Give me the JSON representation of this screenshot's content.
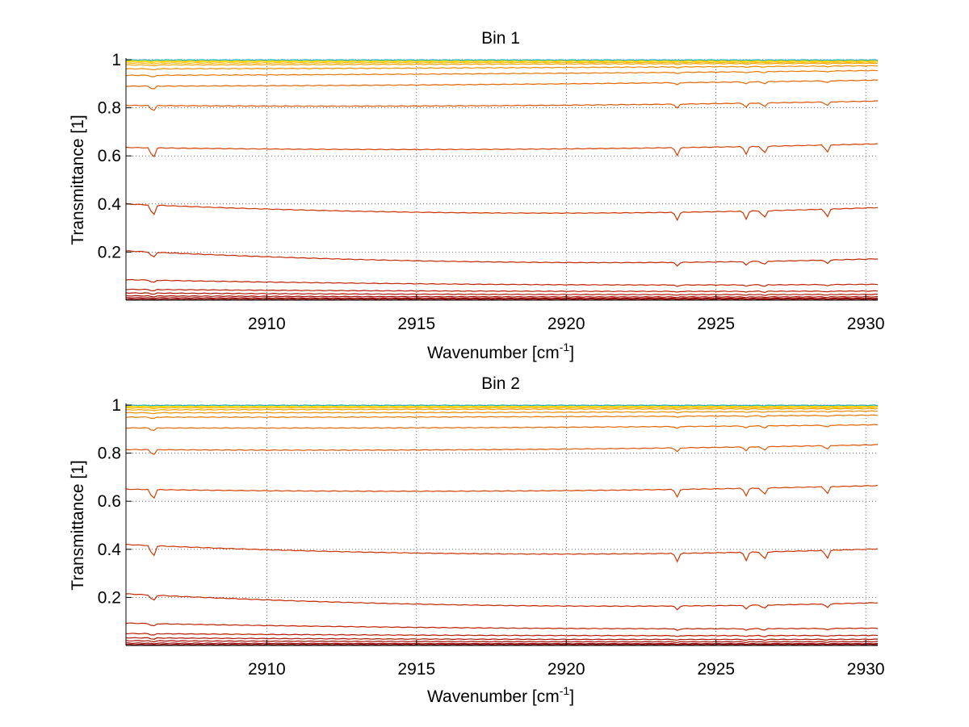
{
  "chart_data": [
    {
      "type": "line",
      "title": "Bin 1",
      "xlabel": "Wavenumber [cm",
      "xlabel_sup": "-1",
      "xlabel_close": "]",
      "ylabel": "Transmittance [1]",
      "xlim": [
        2905.3,
        2930.4
      ],
      "ylim": [
        0,
        1
      ],
      "xticks": [
        "2910",
        "2915",
        "2920",
        "2925",
        "2930"
      ],
      "yticks": [
        "0.2",
        "0.4",
        "0.6",
        "0.8",
        "1"
      ],
      "grid": true,
      "series": [
        {
          "color": "#8b0000",
          "start": 0.004,
          "end": 0.004,
          "curve": 0
        },
        {
          "color": "#9a0000",
          "start": 0.01,
          "end": 0.008,
          "curve": 0.001
        },
        {
          "color": "#a50d00",
          "start": 0.018,
          "end": 0.014,
          "curve": 0.002
        },
        {
          "color": "#b01500",
          "start": 0.03,
          "end": 0.024,
          "curve": 0.003
        },
        {
          "color": "#b81c00",
          "start": 0.045,
          "end": 0.038,
          "curve": 0.004
        },
        {
          "color": "#bf2200",
          "start": 0.085,
          "end": 0.066,
          "curve": 0.01
        },
        {
          "color": "#c42800",
          "start": 0.205,
          "end": 0.172,
          "curve": 0.03
        },
        {
          "color": "#cc3300",
          "start": 0.4,
          "end": 0.385,
          "curve": 0.03
        },
        {
          "color": "#d44000",
          "start": 0.635,
          "end": 0.65,
          "curve": 0.015
        },
        {
          "color": "#dd5500",
          "start": 0.81,
          "end": 0.828,
          "curve": 0.01
        },
        {
          "color": "#e36600",
          "start": 0.89,
          "end": 0.915,
          "curve": 0.005
        },
        {
          "color": "#e87700",
          "start": 0.935,
          "end": 0.955,
          "curve": 0.003
        },
        {
          "color": "#ee8c00",
          "start": 0.962,
          "end": 0.975,
          "curve": 0.002
        },
        {
          "color": "#f3a200",
          "start": 0.978,
          "end": 0.985,
          "curve": 0
        },
        {
          "color": "#f7b800",
          "start": 0.986,
          "end": 0.99,
          "curve": 0
        },
        {
          "color": "#fbcc00",
          "start": 0.992,
          "end": 0.994,
          "curve": 0
        },
        {
          "color": "#ffe000",
          "start": 0.996,
          "end": 0.997,
          "curve": 0
        },
        {
          "color": "#19b3c8",
          "start": 0.999,
          "end": 0.999,
          "curve": 0
        }
      ]
    },
    {
      "type": "line",
      "title": "Bin 2",
      "xlabel": "Wavenumber [cm",
      "xlabel_sup": "-1",
      "xlabel_close": "]",
      "ylabel": "Transmittance [1]",
      "xlim": [
        2905.3,
        2930.4
      ],
      "ylim": [
        0,
        1
      ],
      "xticks": [
        "2910",
        "2915",
        "2920",
        "2925",
        "2930"
      ],
      "yticks": [
        "0.2",
        "0.4",
        "0.6",
        "0.8",
        "1"
      ],
      "grid": true,
      "series": [
        {
          "color": "#8b0000",
          "start": 0.004,
          "end": 0.004,
          "curve": 0
        },
        {
          "color": "#9a0000",
          "start": 0.01,
          "end": 0.008,
          "curve": 0.001
        },
        {
          "color": "#a50d00",
          "start": 0.02,
          "end": 0.016,
          "curve": 0.002
        },
        {
          "color": "#b01500",
          "start": 0.032,
          "end": 0.026,
          "curve": 0.003
        },
        {
          "color": "#b81c00",
          "start": 0.05,
          "end": 0.042,
          "curve": 0.004
        },
        {
          "color": "#bf2200",
          "start": 0.093,
          "end": 0.072,
          "curve": 0.01
        },
        {
          "color": "#c42800",
          "start": 0.215,
          "end": 0.178,
          "curve": 0.03
        },
        {
          "color": "#cc3300",
          "start": 0.42,
          "end": 0.402,
          "curve": 0.03
        },
        {
          "color": "#d44000",
          "start": 0.65,
          "end": 0.665,
          "curve": 0.015
        },
        {
          "color": "#dd5500",
          "start": 0.815,
          "end": 0.835,
          "curve": 0.01
        },
        {
          "color": "#e36600",
          "start": 0.905,
          "end": 0.918,
          "curve": 0.005
        },
        {
          "color": "#e87700",
          "start": 0.95,
          "end": 0.958,
          "curve": 0.003
        },
        {
          "color": "#ee8c00",
          "start": 0.968,
          "end": 0.975,
          "curve": 0.002
        },
        {
          "color": "#f3a200",
          "start": 0.98,
          "end": 0.985,
          "curve": 0
        },
        {
          "color": "#f7b800",
          "start": 0.988,
          "end": 0.99,
          "curve": 0
        },
        {
          "color": "#fbcc00",
          "start": 0.993,
          "end": 0.994,
          "curve": 0
        },
        {
          "color": "#ffe000",
          "start": 0.996,
          "end": 0.997,
          "curve": 0
        },
        {
          "color": "#19b3c8",
          "start": 0.999,
          "end": 0.999,
          "curve": 0
        }
      ]
    }
  ]
}
